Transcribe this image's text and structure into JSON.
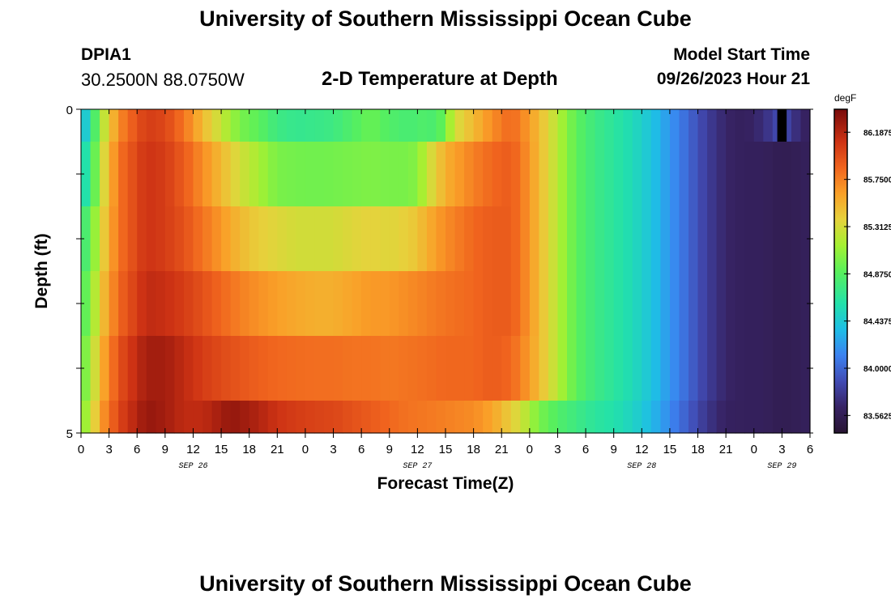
{
  "header": {
    "title": "University of Southern Mississippi Ocean Cube",
    "station": "DPIA1",
    "coordinates": "30.2500N  88.0750W",
    "subtitle": "2-D Temperature at Depth",
    "model_start_label": "Model Start Time",
    "model_start_value": "09/26/2023 Hour 21",
    "repeated_title": "University of Southern Mississippi Ocean Cube"
  },
  "chart_data": {
    "type": "heatmap",
    "title": "2-D Temperature at Depth",
    "xlabel": "Forecast Time(Z)",
    "ylabel": "Depth (ft)",
    "ylim": [
      0,
      5
    ],
    "y_ticks": [
      "0",
      "5"
    ],
    "x_tick_labels": [
      "0",
      "3",
      "6",
      "9",
      "12",
      "15",
      "18",
      "21",
      "0",
      "3",
      "6",
      "9",
      "12",
      "15",
      "18",
      "21",
      "0",
      "3",
      "6",
      "9",
      "12",
      "15",
      "18",
      "21",
      "0",
      "3",
      "6"
    ],
    "date_labels": [
      {
        "label": "SEP 26",
        "x_hour": 12
      },
      {
        "label": "SEP 27",
        "x_hour": 36
      },
      {
        "label": "SEP 28",
        "x_hour": 60
      },
      {
        "label": "SEP 29",
        "x_hour": 75
      }
    ],
    "colorbar": {
      "unit": "degF",
      "min": 83.4,
      "max": 86.4,
      "tick_labels": [
        "86.1875",
        "85.7500",
        "85.3125",
        "84.8750",
        "84.4375",
        "84.0000",
        "83.5625"
      ]
    },
    "hour_range": [
      0,
      78
    ],
    "depth_bands": [
      {
        "depth_range": [
          0.0,
          0.5
        ],
        "profile": [
          [
            0,
            84.3
          ],
          [
            1,
            84.6
          ],
          [
            2,
            85.1
          ],
          [
            4,
            85.7
          ],
          [
            6,
            85.95
          ],
          [
            7,
            86.05
          ],
          [
            9,
            86.0
          ],
          [
            11,
            85.8
          ],
          [
            13,
            85.5
          ],
          [
            15,
            85.25
          ],
          [
            17,
            85.0
          ],
          [
            19,
            84.9
          ],
          [
            21,
            84.75
          ],
          [
            23,
            84.7
          ],
          [
            25,
            84.72
          ],
          [
            27,
            84.75
          ],
          [
            29,
            84.85
          ],
          [
            31,
            84.95
          ],
          [
            33,
            84.85
          ],
          [
            35,
            84.8
          ],
          [
            37,
            84.85
          ],
          [
            38,
            84.8
          ],
          [
            39,
            85.0
          ],
          [
            40,
            85.3
          ],
          [
            42,
            85.5
          ],
          [
            44,
            85.7
          ],
          [
            46,
            85.85
          ],
          [
            47,
            85.75
          ],
          [
            49,
            85.5
          ],
          [
            51,
            85.2
          ],
          [
            53,
            84.9
          ],
          [
            55,
            84.75
          ],
          [
            57,
            84.65
          ],
          [
            59,
            84.55
          ],
          [
            61,
            84.4
          ],
          [
            63,
            84.2
          ],
          [
            65,
            84.0
          ],
          [
            67,
            83.8
          ],
          [
            69,
            83.65
          ],
          [
            71,
            83.6
          ],
          [
            73,
            83.7
          ],
          [
            75,
            83.9
          ],
          [
            77,
            83.65
          ],
          [
            78,
            83.6
          ]
        ]
      },
      {
        "depth_range": [
          0.5,
          1.5
        ],
        "profile": [
          [
            0,
            84.5
          ],
          [
            1,
            84.7
          ],
          [
            2,
            85.2
          ],
          [
            4,
            85.8
          ],
          [
            6,
            86.0
          ],
          [
            7,
            86.1
          ],
          [
            9,
            86.05
          ],
          [
            11,
            85.9
          ],
          [
            13,
            85.7
          ],
          [
            15,
            85.5
          ],
          [
            17,
            85.3
          ],
          [
            19,
            85.15
          ],
          [
            21,
            85.0
          ],
          [
            23,
            84.98
          ],
          [
            25,
            84.97
          ],
          [
            27,
            84.98
          ],
          [
            29,
            85.0
          ],
          [
            31,
            85.02
          ],
          [
            33,
            85.0
          ],
          [
            35,
            85.0
          ],
          [
            36,
            85.05
          ],
          [
            37,
            85.25
          ],
          [
            39,
            85.55
          ],
          [
            42,
            85.75
          ],
          [
            44,
            85.85
          ],
          [
            46,
            85.9
          ],
          [
            47,
            85.8
          ],
          [
            49,
            85.5
          ],
          [
            51,
            85.2
          ],
          [
            53,
            84.9
          ],
          [
            55,
            84.75
          ],
          [
            57,
            84.65
          ],
          [
            59,
            84.55
          ],
          [
            61,
            84.4
          ],
          [
            63,
            84.2
          ],
          [
            65,
            84.0
          ],
          [
            67,
            83.8
          ],
          [
            69,
            83.65
          ],
          [
            71,
            83.6
          ],
          [
            73,
            83.6
          ],
          [
            75,
            83.55
          ],
          [
            77,
            83.58
          ],
          [
            78,
            83.6
          ]
        ]
      },
      {
        "depth_range": [
          1.5,
          2.5
        ],
        "profile": [
          [
            0,
            84.75
          ],
          [
            1,
            84.9
          ],
          [
            2,
            85.3
          ],
          [
            4,
            85.8
          ],
          [
            6,
            86.0
          ],
          [
            7,
            86.1
          ],
          [
            9,
            86.05
          ],
          [
            11,
            85.95
          ],
          [
            13,
            85.8
          ],
          [
            15,
            85.65
          ],
          [
            17,
            85.5
          ],
          [
            19,
            85.4
          ],
          [
            21,
            85.35
          ],
          [
            23,
            85.3
          ],
          [
            25,
            85.3
          ],
          [
            27,
            85.3
          ],
          [
            29,
            85.35
          ],
          [
            31,
            85.38
          ],
          [
            33,
            85.35
          ],
          [
            35,
            85.4
          ],
          [
            36,
            85.45
          ],
          [
            37,
            85.55
          ],
          [
            39,
            85.7
          ],
          [
            42,
            85.85
          ],
          [
            44,
            85.9
          ],
          [
            46,
            85.9
          ],
          [
            47,
            85.8
          ],
          [
            49,
            85.5
          ],
          [
            51,
            85.2
          ],
          [
            53,
            84.9
          ],
          [
            55,
            84.75
          ],
          [
            57,
            84.65
          ],
          [
            59,
            84.55
          ],
          [
            61,
            84.4
          ],
          [
            63,
            84.2
          ],
          [
            65,
            84.0
          ],
          [
            67,
            83.8
          ],
          [
            69,
            83.65
          ],
          [
            71,
            83.6
          ],
          [
            73,
            83.6
          ],
          [
            75,
            83.55
          ],
          [
            77,
            83.58
          ],
          [
            78,
            83.6
          ]
        ]
      },
      {
        "depth_range": [
          2.5,
          3.5
        ],
        "profile": [
          [
            0,
            84.85
          ],
          [
            1,
            85.0
          ],
          [
            2,
            85.4
          ],
          [
            4,
            85.85
          ],
          [
            6,
            86.05
          ],
          [
            7,
            86.15
          ],
          [
            9,
            86.12
          ],
          [
            11,
            86.05
          ],
          [
            13,
            85.95
          ],
          [
            15,
            85.85
          ],
          [
            17,
            85.75
          ],
          [
            19,
            85.68
          ],
          [
            21,
            85.62
          ],
          [
            23,
            85.58
          ],
          [
            25,
            85.55
          ],
          [
            27,
            85.55
          ],
          [
            29,
            85.6
          ],
          [
            31,
            85.65
          ],
          [
            33,
            85.65
          ],
          [
            35,
            85.7
          ],
          [
            37,
            85.75
          ],
          [
            39,
            85.8
          ],
          [
            42,
            85.85
          ],
          [
            44,
            85.9
          ],
          [
            46,
            85.9
          ],
          [
            47,
            85.8
          ],
          [
            49,
            85.5
          ],
          [
            51,
            85.2
          ],
          [
            53,
            84.9
          ],
          [
            55,
            84.75
          ],
          [
            57,
            84.65
          ],
          [
            59,
            84.55
          ],
          [
            61,
            84.4
          ],
          [
            63,
            84.2
          ],
          [
            65,
            84.0
          ],
          [
            67,
            83.8
          ],
          [
            69,
            83.65
          ],
          [
            71,
            83.6
          ],
          [
            73,
            83.6
          ],
          [
            75,
            83.55
          ],
          [
            77,
            83.58
          ],
          [
            78,
            83.6
          ]
        ]
      },
      {
        "depth_range": [
          3.5,
          4.5
        ],
        "profile": [
          [
            0,
            84.95
          ],
          [
            1,
            85.1
          ],
          [
            2,
            85.5
          ],
          [
            4,
            85.95
          ],
          [
            6,
            86.15
          ],
          [
            7,
            86.25
          ],
          [
            9,
            86.25
          ],
          [
            11,
            86.15
          ],
          [
            13,
            86.05
          ],
          [
            15,
            85.98
          ],
          [
            17,
            85.93
          ],
          [
            19,
            85.88
          ],
          [
            21,
            85.85
          ],
          [
            23,
            85.83
          ],
          [
            25,
            85.82
          ],
          [
            27,
            85.82
          ],
          [
            29,
            85.8
          ],
          [
            31,
            85.8
          ],
          [
            33,
            85.78
          ],
          [
            35,
            85.8
          ],
          [
            37,
            85.82
          ],
          [
            39,
            85.85
          ],
          [
            42,
            85.85
          ],
          [
            44,
            85.9
          ],
          [
            46,
            85.85
          ],
          [
            47,
            85.75
          ],
          [
            49,
            85.5
          ],
          [
            51,
            85.2
          ],
          [
            53,
            84.9
          ],
          [
            55,
            84.75
          ],
          [
            57,
            84.65
          ],
          [
            59,
            84.55
          ],
          [
            61,
            84.4
          ],
          [
            63,
            84.2
          ],
          [
            65,
            84.0
          ],
          [
            67,
            83.8
          ],
          [
            69,
            83.65
          ],
          [
            71,
            83.6
          ],
          [
            73,
            83.6
          ],
          [
            75,
            83.55
          ],
          [
            77,
            83.58
          ],
          [
            78,
            83.6
          ]
        ]
      },
      {
        "depth_range": [
          4.5,
          5.0
        ],
        "profile": [
          [
            0,
            85.05
          ],
          [
            1,
            85.2
          ],
          [
            2,
            85.6
          ],
          [
            4,
            86.0
          ],
          [
            6,
            86.2
          ],
          [
            7,
            86.3
          ],
          [
            9,
            86.25
          ],
          [
            11,
            86.15
          ],
          [
            13,
            86.15
          ],
          [
            15,
            86.25
          ],
          [
            16,
            86.3
          ],
          [
            17,
            86.28
          ],
          [
            19,
            86.2
          ],
          [
            21,
            86.1
          ],
          [
            23,
            86.05
          ],
          [
            25,
            86.02
          ],
          [
            27,
            86.0
          ],
          [
            29,
            85.95
          ],
          [
            31,
            85.9
          ],
          [
            33,
            85.85
          ],
          [
            35,
            85.8
          ],
          [
            37,
            85.78
          ],
          [
            39,
            85.75
          ],
          [
            42,
            85.7
          ],
          [
            44,
            85.6
          ],
          [
            46,
            85.4
          ],
          [
            47,
            85.3
          ],
          [
            49,
            85.0
          ],
          [
            51,
            84.85
          ],
          [
            53,
            84.75
          ],
          [
            55,
            84.65
          ],
          [
            57,
            84.6
          ],
          [
            59,
            84.5
          ],
          [
            61,
            84.35
          ],
          [
            63,
            84.15
          ],
          [
            65,
            83.95
          ],
          [
            67,
            83.75
          ],
          [
            69,
            83.62
          ],
          [
            71,
            83.6
          ],
          [
            73,
            83.6
          ],
          [
            75,
            83.55
          ],
          [
            77,
            83.58
          ],
          [
            78,
            83.6
          ]
        ]
      }
    ],
    "anomaly_cell": {
      "hour_range": [
        74.5,
        75.5
      ],
      "depth_range": [
        0.0,
        0.5
      ],
      "color": "#000000"
    }
  }
}
